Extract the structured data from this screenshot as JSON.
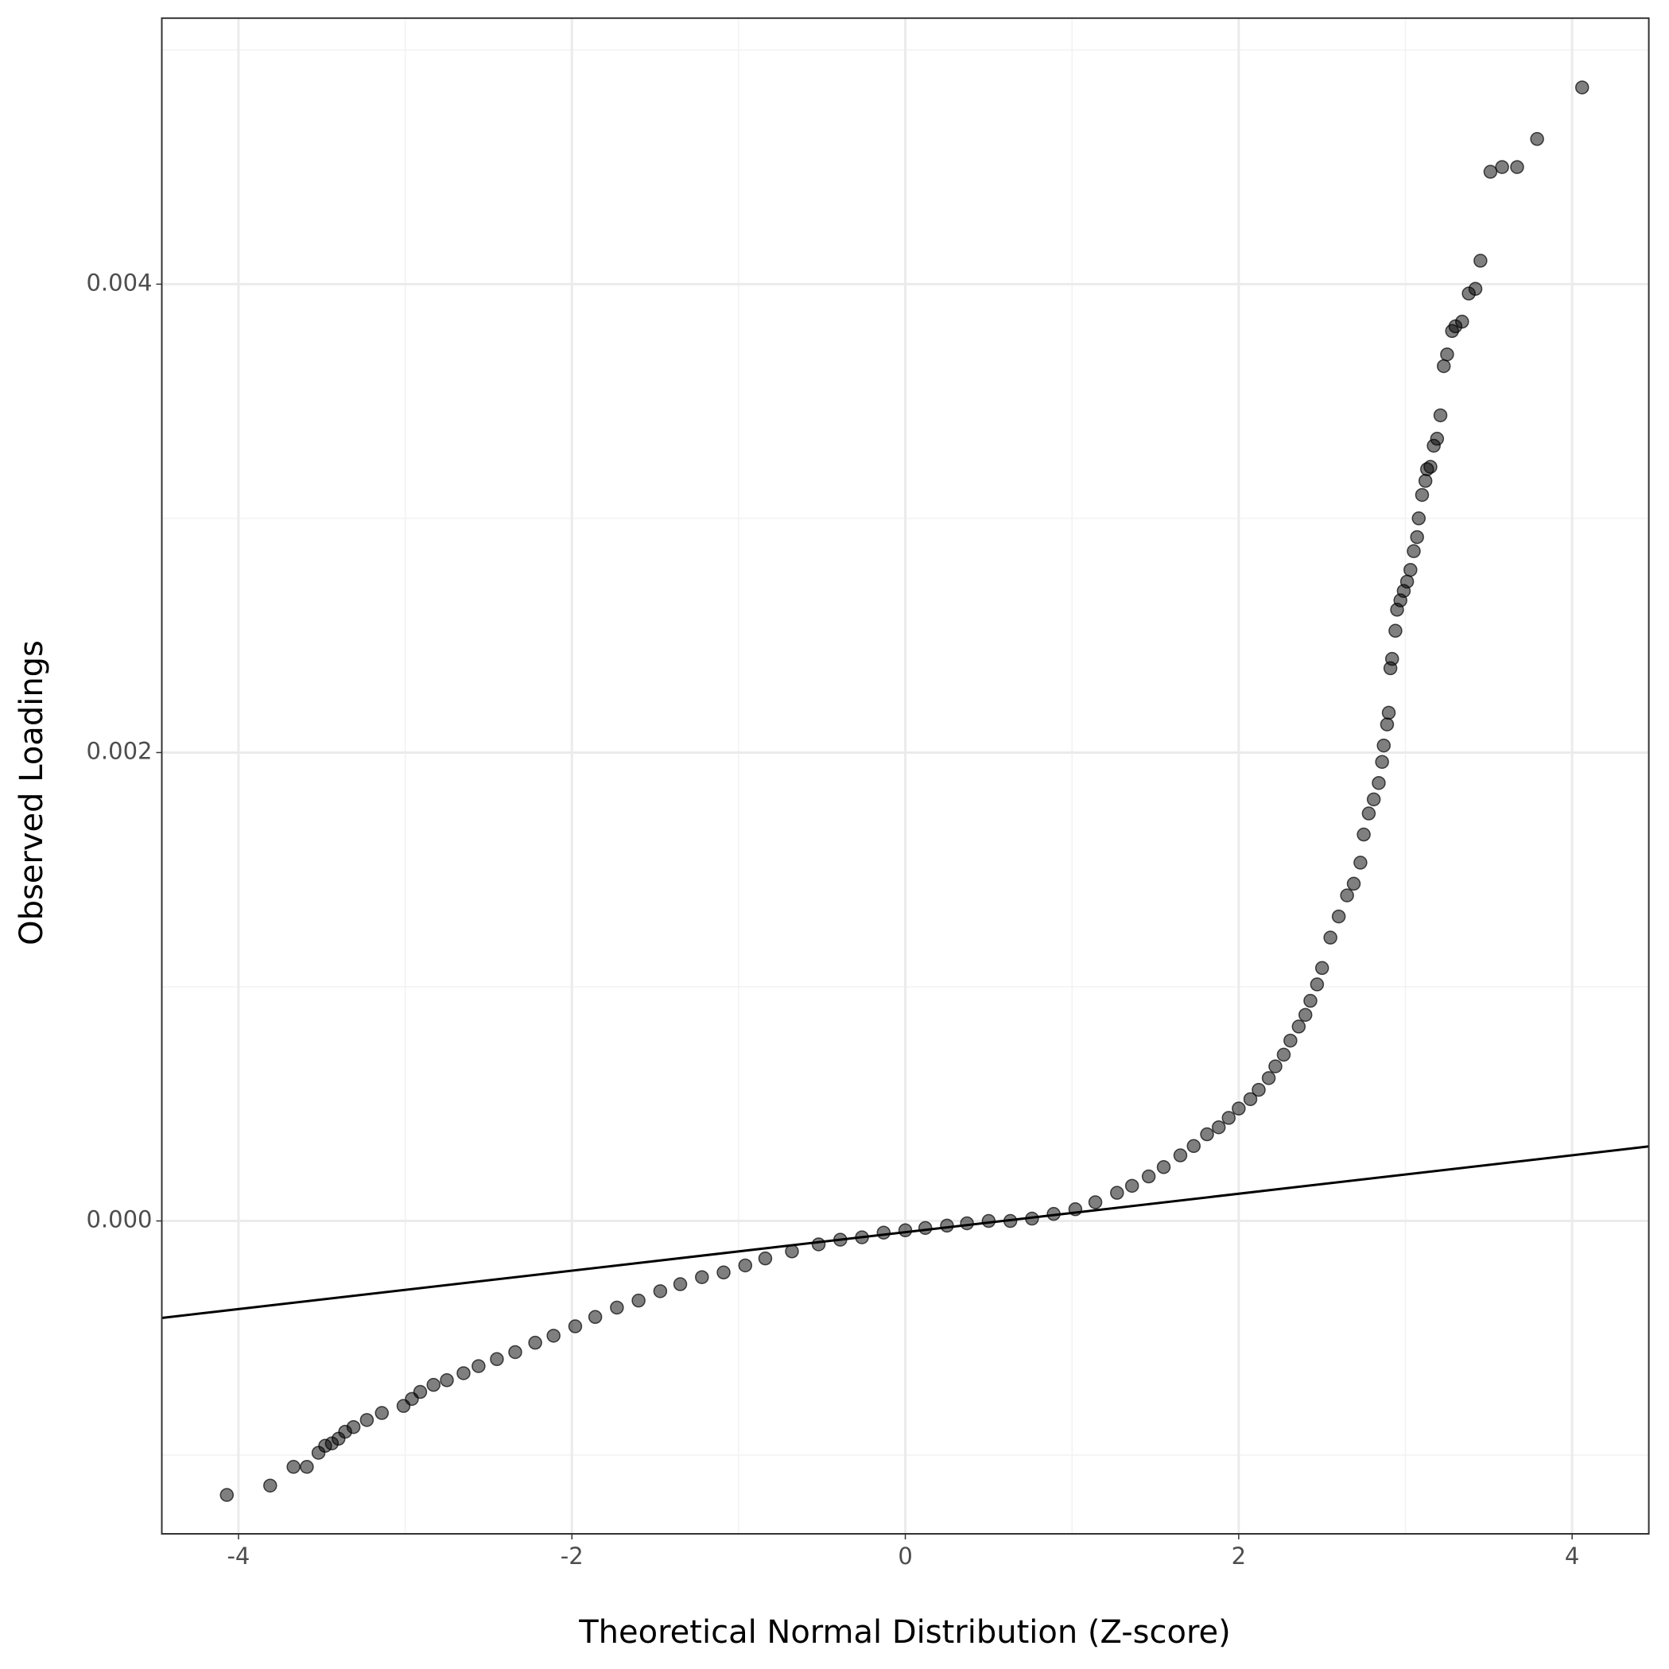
{
  "chart_data": {
    "type": "scatter",
    "xlabel": "Theoretical Normal Distribution (Z-score)",
    "ylabel": "Observed Loadings",
    "xlim": [
      -4.46,
      4.46
    ],
    "ylim": [
      -0.001336,
      0.005136
    ],
    "xticks": [
      -4,
      -2,
      0,
      2,
      4
    ],
    "yticks": [
      {
        "value": 0,
        "label": "0.000"
      },
      {
        "value": 0.002,
        "label": "0.002"
      },
      {
        "value": 0.004,
        "label": "0.004"
      }
    ],
    "xminor": [
      -3,
      -1,
      1,
      3
    ],
    "yminor": [
      -0.001,
      0.001,
      0.003,
      0.005
    ],
    "grid": true,
    "color": "#000000",
    "reference_line": {
      "slope": 8.21e-05,
      "intercept": -4.8e-05
    },
    "x": [
      -4.07,
      -3.81,
      -3.67,
      -3.59,
      -3.52,
      -3.48,
      -3.44,
      -3.4,
      -3.36,
      -3.31,
      -3.23,
      -3.14,
      -3.01,
      -2.96,
      -2.91,
      -2.83,
      -2.75,
      -2.65,
      -2.56,
      -2.45,
      -2.34,
      -2.22,
      -2.11,
      -1.98,
      -1.86,
      -1.73,
      -1.6,
      -1.47,
      -1.35,
      -1.22,
      -1.09,
      -0.96,
      -0.84,
      -0.68,
      -0.52,
      -0.39,
      -0.26,
      -0.13,
      0,
      0.12,
      0.25,
      0.37,
      0.5,
      0.63,
      0.76,
      0.89,
      1.02,
      1.14,
      1.27,
      1.36,
      1.46,
      1.55,
      1.65,
      1.73,
      1.81,
      1.88,
      1.94,
      2.0,
      2.07,
      2.12,
      2.18,
      2.22,
      2.27,
      2.31,
      2.36,
      2.4,
      2.43,
      2.47,
      2.5,
      2.55,
      2.6,
      2.65,
      2.69,
      2.73,
      2.75,
      2.78,
      2.81,
      2.84,
      2.86,
      2.87,
      2.89,
      2.9,
      2.91,
      2.92,
      2.94,
      2.95,
      2.97,
      2.99,
      3.01,
      3.03,
      3.05,
      3.07,
      3.08,
      3.1,
      3.12,
      3.13,
      3.15,
      3.17,
      3.19,
      3.21,
      3.23,
      3.25,
      3.28,
      3.3,
      3.34,
      3.38,
      3.42,
      3.45,
      3.51,
      3.58,
      3.67,
      3.79,
      4.06
    ],
    "values": [
      -0.00117,
      -0.00113,
      -0.00105,
      -0.00105,
      -0.00099,
      -0.00096,
      -0.00095,
      -0.00093,
      -0.0009,
      -0.00088,
      -0.00085,
      -0.00082,
      -0.00079,
      -0.00076,
      -0.00073,
      -0.0007,
      -0.00068,
      -0.00065,
      -0.00062,
      -0.00059,
      -0.00056,
      -0.00052,
      -0.00049,
      -0.00045,
      -0.00041,
      -0.00037,
      -0.00034,
      -0.0003,
      -0.00027,
      -0.00024,
      -0.00022,
      -0.00019,
      -0.00016,
      -0.00013,
      -0.0001,
      -8e-05,
      -7e-05,
      -5e-05,
      -4e-05,
      -3e-05,
      -2e-05,
      -1e-05,
      0.0,
      0.0,
      1e-05,
      3e-05,
      5e-05,
      8e-05,
      0.00012,
      0.00015,
      0.00019,
      0.00023,
      0.00028,
      0.00032,
      0.00037,
      0.0004,
      0.00044,
      0.00048,
      0.00052,
      0.00056,
      0.00061,
      0.00066,
      0.00071,
      0.00077,
      0.00083,
      0.00088,
      0.00094,
      0.00101,
      0.00108,
      0.00121,
      0.0013,
      0.00139,
      0.00144,
      0.00153,
      0.00165,
      0.00174,
      0.0018,
      0.00187,
      0.00196,
      0.00203,
      0.00212,
      0.00217,
      0.00236,
      0.0024,
      0.00252,
      0.00261,
      0.00265,
      0.00269,
      0.00273,
      0.00278,
      0.00286,
      0.00292,
      0.003,
      0.0031,
      0.00316,
      0.00321,
      0.00322,
      0.00331,
      0.00334,
      0.00344,
      0.00365,
      0.0037,
      0.0038,
      0.00382,
      0.00384,
      0.00396,
      0.00398,
      0.0041,
      0.00448,
      0.0045,
      0.0045,
      0.00462,
      0.00484
    ]
  }
}
